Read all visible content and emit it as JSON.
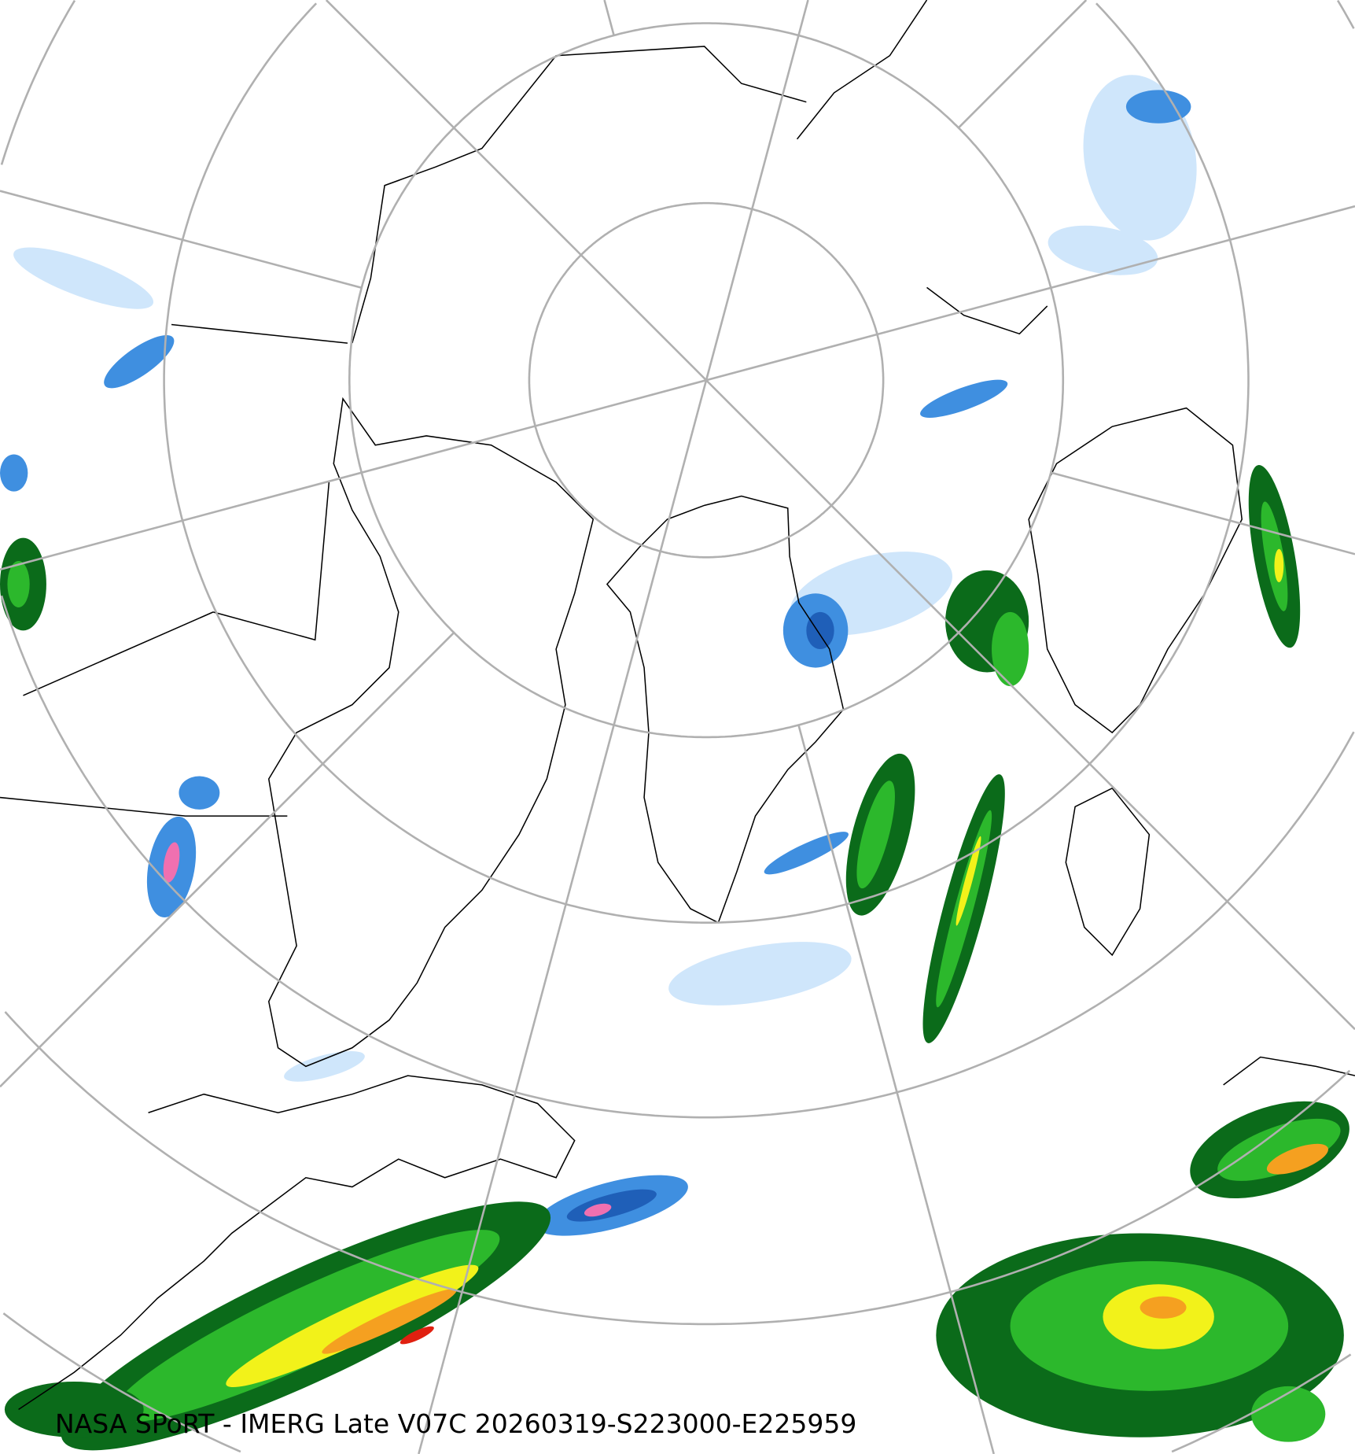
{
  "map": {
    "projection": "north-polar-stereographic",
    "caption": "NASA SPoRT - IMERG Late V07C 20260319-S223000-E225959",
    "colors": {
      "graticule": "#b0b0b0",
      "coastline": "#000000",
      "precip_light_blue": "#cfe6fb",
      "precip_blue": "#3f8fe0",
      "precip_dark_blue": "#1f5fb8",
      "precip_dark_green": "#0b6b1a",
      "precip_green": "#2cb82c",
      "precip_yellow": "#f2f21a",
      "precip_orange": "#f5a020",
      "precip_red": "#e02010",
      "precip_pink": "#f070b0"
    }
  }
}
